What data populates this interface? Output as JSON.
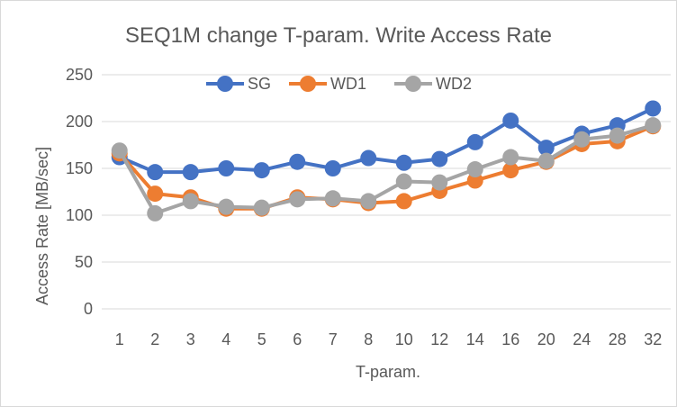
{
  "chart_data": {
    "type": "line",
    "title": "SEQ1M change T-param. Write Access Rate",
    "xlabel": "T-param.",
    "ylabel": "Access Rate [MB/sec]",
    "categories": [
      "1",
      "2",
      "3",
      "4",
      "5",
      "6",
      "7",
      "8",
      "10",
      "12",
      "14",
      "16",
      "20",
      "24",
      "28",
      "32"
    ],
    "ylim": [
      0,
      250
    ],
    "yticks": [
      0,
      50,
      100,
      150,
      200,
      250
    ],
    "grid": true,
    "legend_position": "top",
    "series": [
      {
        "name": "SG",
        "color": "#4472C4",
        "values": [
          162,
          146,
          146,
          150,
          148,
          157,
          150,
          161,
          156,
          160,
          178,
          201,
          172,
          187,
          196,
          214
        ]
      },
      {
        "name": "WD1",
        "color": "#ED7D31",
        "values": [
          166,
          123,
          119,
          107,
          107,
          119,
          117,
          113,
          115,
          126,
          137,
          148,
          157,
          176,
          179,
          195
        ]
      },
      {
        "name": "WD2",
        "color": "#A5A5A5",
        "values": [
          169,
          102,
          115,
          109,
          108,
          117,
          118,
          115,
          136,
          135,
          149,
          162,
          158,
          181,
          185,
          196
        ]
      }
    ]
  }
}
